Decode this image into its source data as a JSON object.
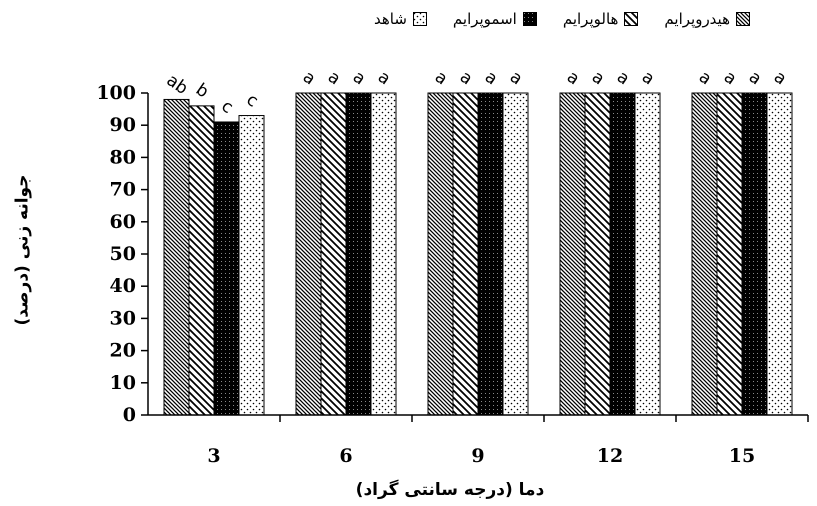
{
  "chart_data": {
    "type": "bar",
    "title": "",
    "xlabel": "دما (درجه سانتی گراد)",
    "ylabel": "جوانه زنی (درصد)",
    "ylim": [
      0,
      100
    ],
    "yticks": [
      0,
      10,
      20,
      30,
      40,
      50,
      60,
      70,
      80,
      90,
      100
    ],
    "grid": false,
    "legend_position": "top",
    "categories": [
      "3",
      "6",
      "9",
      "12",
      "15"
    ],
    "series": [
      {
        "name": "هیدروپرایم",
        "pattern": "diagonal-dense",
        "values": [
          98,
          100,
          100,
          100,
          100
        ],
        "letters": [
          "ab",
          "a",
          "a",
          "a",
          "a"
        ]
      },
      {
        "name": "هالوپرایم",
        "pattern": "diagonal-wide",
        "values": [
          96,
          100,
          100,
          100,
          100
        ],
        "letters": [
          "b",
          "a",
          "a",
          "a",
          "a"
        ]
      },
      {
        "name": "اسموپرایم",
        "pattern": "solid-black",
        "values": [
          91,
          100,
          100,
          100,
          100
        ],
        "letters": [
          "c",
          "a",
          "a",
          "a",
          "a"
        ]
      },
      {
        "name": "شاهد",
        "pattern": "dots",
        "values": [
          93,
          100,
          100,
          100,
          100
        ],
        "letters": [
          "c",
          "a",
          "a",
          "a",
          "a"
        ]
      }
    ]
  }
}
